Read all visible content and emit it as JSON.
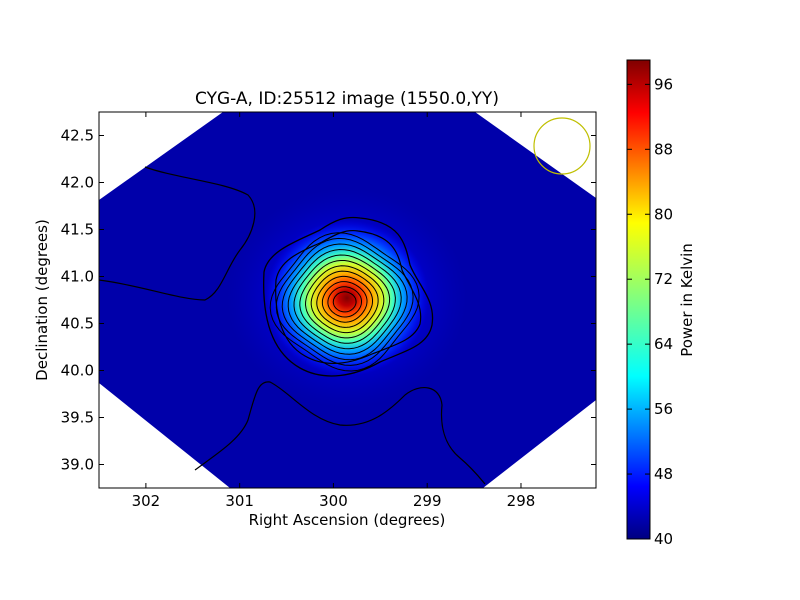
{
  "chart_data": {
    "type": "heatmap",
    "title": "CYG-A, ID:25512 image (1550.0,YY)",
    "xlabel": "Right Ascension (degrees)",
    "ylabel": "Declination (degrees)",
    "xlim": [
      302.5,
      297.2
    ],
    "ylim": [
      38.75,
      42.75
    ],
    "x_ticks": [
      302,
      301,
      300,
      299,
      298
    ],
    "y_ticks": [
      39.0,
      39.5,
      40.0,
      40.5,
      41.0,
      41.5,
      42.0,
      42.5
    ],
    "y_tick_labels": [
      "39.0",
      "39.5",
      "40.0",
      "40.5",
      "41.0",
      "41.5",
      "42.0",
      "42.5"
    ],
    "peak": {
      "ra": 299.88,
      "dec": 40.73,
      "value": 99
    },
    "background_level": 41,
    "contour_lines": 14,
    "beam_marker": {
      "ra": 297.55,
      "dec": 42.35,
      "color": "#bfbf00"
    },
    "colorbar": {
      "label": "Power in Kelvin",
      "range": [
        40,
        99
      ],
      "ticks": [
        40,
        48,
        56,
        64,
        72,
        80,
        88,
        96
      ],
      "colormap": "jet"
    },
    "grid": false
  }
}
